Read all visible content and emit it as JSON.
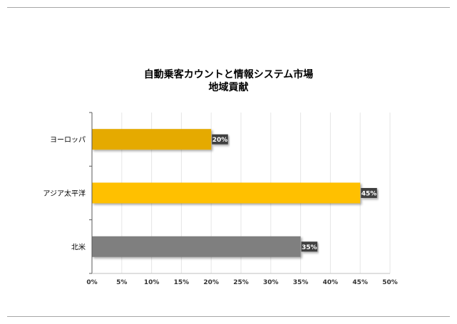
{
  "chart_data": {
    "type": "bar",
    "orientation": "horizontal",
    "title": "自動乗客カウントと情報システム市場",
    "subtitle": "地域貢献",
    "categories": [
      "ヨーロッパ",
      "アジア太平洋",
      "北米"
    ],
    "values": [
      20,
      45,
      35
    ],
    "data_labels": [
      "20%",
      "45%",
      "35%"
    ],
    "colors": [
      "#e5aa00",
      "#ffc000",
      "#7f7f7f"
    ],
    "xlim": [
      0,
      50
    ],
    "xticks": [
      0,
      5,
      10,
      15,
      20,
      25,
      30,
      35,
      40,
      45,
      50
    ],
    "xtick_labels": [
      "0%",
      "5%",
      "10%",
      "15%",
      "20%",
      "25%",
      "30%",
      "35%",
      "40%",
      "45%",
      "50%"
    ],
    "grid": true,
    "legend": "none",
    "xlabel": "",
    "ylabel": ""
  }
}
